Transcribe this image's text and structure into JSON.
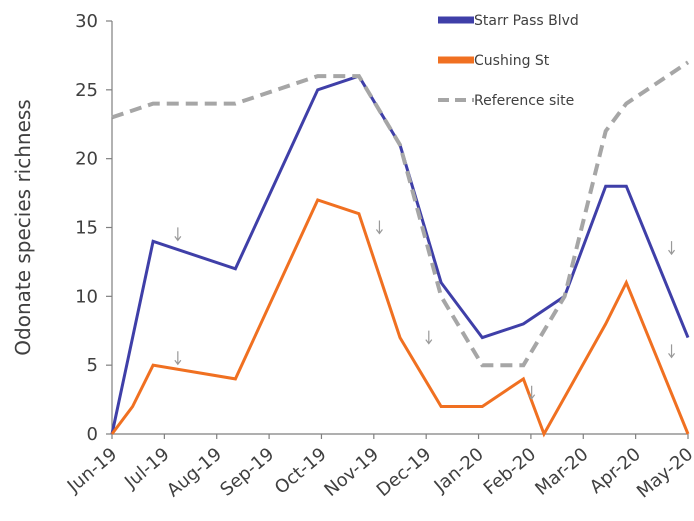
{
  "chart_data": {
    "type": "line",
    "ylabel": "Odonate species richness",
    "xlabel": "",
    "ylim": [
      0,
      30
    ],
    "yticks": [
      "0",
      "5",
      "10",
      "15",
      "20",
      "25",
      "30"
    ],
    "categories": [
      "Jun-19",
      "Jul-19",
      "Aug-19",
      "Sep-19",
      "Oct-19",
      "Nov-19",
      "Dec-19",
      "Jan-20",
      "Feb-20",
      "Mar-20",
      "Apr-20",
      "May-20"
    ],
    "legend_position": "top-right",
    "grid": false,
    "series": [
      {
        "name": "Starr Pass Blvd",
        "color": "#3f3fa8",
        "style": "solid",
        "points": [
          [
            0,
            0
          ],
          [
            0.25,
            7
          ],
          [
            0.5,
            14
          ],
          [
            1.5,
            12
          ],
          [
            2.5,
            25
          ],
          [
            3.0,
            26
          ],
          [
            3.5,
            21
          ],
          [
            4.0,
            11
          ],
          [
            4.5,
            7
          ],
          [
            5.0,
            8
          ],
          [
            5.5,
            10
          ],
          [
            6.0,
            18
          ],
          [
            6.25,
            18
          ],
          [
            7.0,
            7
          ]
        ]
      },
      {
        "name": "Cushing St",
        "color": "#f07021",
        "style": "solid",
        "points": [
          [
            0,
            0
          ],
          [
            0.25,
            2
          ],
          [
            0.5,
            5
          ],
          [
            1.5,
            4
          ],
          [
            2.5,
            17
          ],
          [
            3.0,
            16
          ],
          [
            3.5,
            7
          ],
          [
            4.0,
            2
          ],
          [
            4.5,
            2
          ],
          [
            5.0,
            4
          ],
          [
            5.25,
            0
          ],
          [
            6.0,
            8
          ],
          [
            6.25,
            11
          ],
          [
            7.0,
            0
          ]
        ]
      },
      {
        "name": "Reference site",
        "color": "#a6a6a6",
        "style": "dashed",
        "points": [
          [
            0,
            23
          ],
          [
            0.5,
            24
          ],
          [
            1.5,
            24
          ],
          [
            2.5,
            26
          ],
          [
            3.0,
            26
          ],
          [
            3.5,
            21
          ],
          [
            4.0,
            10
          ],
          [
            4.5,
            5
          ],
          [
            5.0,
            5
          ],
          [
            5.5,
            10
          ],
          [
            6.0,
            22
          ],
          [
            6.25,
            24
          ],
          [
            7.0,
            27
          ]
        ]
      }
    ],
    "annotations": [
      {
        "symbol": "↓",
        "x": 0.8,
        "y": 14.5
      },
      {
        "symbol": "↓",
        "x": 0.8,
        "y": 5.5
      },
      {
        "symbol": "↓",
        "x": 3.25,
        "y": 15.0
      },
      {
        "symbol": "↓",
        "x": 3.85,
        "y": 7.0
      },
      {
        "symbol": "↓",
        "x": 5.1,
        "y": 3.0
      },
      {
        "symbol": "↓",
        "x": 6.8,
        "y": 13.5
      },
      {
        "symbol": "↓",
        "x": 6.8,
        "y": 6.0
      }
    ]
  }
}
